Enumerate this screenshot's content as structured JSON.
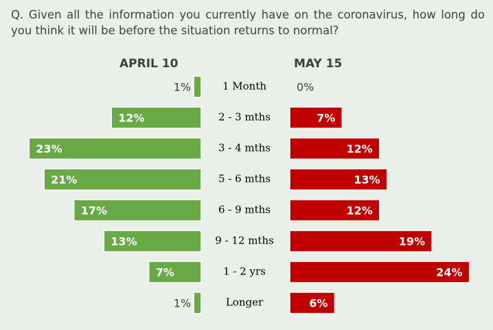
{
  "question": "Q. Given all the information you currently have on the coronavirus, how long do you think it will be before the situation returns to normal?",
  "colors": {
    "april": "#6aaa46",
    "may": "#c00000",
    "background": "#e9f0e8"
  },
  "chart_data": {
    "type": "bar",
    "orientation": "horizontal-butterfly",
    "categories": [
      "1 Month",
      "2 - 3 mths",
      "3 - 4 mths",
      "5 - 6 mths",
      "6 - 9 mths",
      "9 - 12 mths",
      "1 - 2 yrs",
      "Longer"
    ],
    "series": [
      {
        "name": "APRIL 10",
        "values": [
          1,
          12,
          23,
          21,
          17,
          13,
          7,
          1
        ],
        "labels": [
          "1%",
          "12%",
          "23%",
          "21%",
          "17%",
          "13%",
          "7%",
          "1%"
        ]
      },
      {
        "name": "MAY 15",
        "values": [
          0,
          7,
          12,
          13,
          12,
          19,
          24,
          6
        ],
        "labels": [
          "0%",
          "7%",
          "12%",
          "13%",
          "12%",
          "19%",
          "24%",
          "6%"
        ]
      }
    ],
    "unit": "%",
    "grid": false
  }
}
